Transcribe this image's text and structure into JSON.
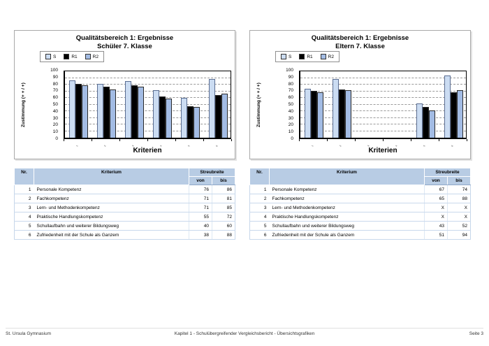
{
  "colors": {
    "s": "#cbdcf2",
    "r1": "#000000",
    "r2": "#a3bce4",
    "table_header": "#b8cce4"
  },
  "chart_data": [
    {
      "type": "bar",
      "title": "Qualitätsbereich 1: Ergebnisse — Schüler 7. Klasse",
      "categories": [
        "1",
        "2",
        "3",
        "4",
        "5",
        "6"
      ],
      "series": [
        {
          "name": "S",
          "values": [
            86,
            81,
            85,
            72,
            60,
            88
          ]
        },
        {
          "name": "R1",
          "values": [
            81,
            77,
            79,
            62,
            47,
            64
          ]
        },
        {
          "name": "R2",
          "values": [
            79,
            73,
            77,
            59,
            46,
            66
          ]
        }
      ],
      "xlabel": "Kriterien",
      "ylabel": "Zustimmung (+ + / +)",
      "ylim": [
        0,
        100
      ],
      "ytick_step": 10,
      "grid": true,
      "legend_position": "top-left"
    },
    {
      "type": "bar",
      "title": "Qualitätsbereich 1: Ergebnisse — Eltern 7. Klasse",
      "categories": [
        "1",
        "2",
        "3",
        "4",
        "5",
        "6"
      ],
      "series": [
        {
          "name": "S",
          "values": [
            74,
            88,
            null,
            null,
            52,
            94
          ]
        },
        {
          "name": "R1",
          "values": [
            71,
            73,
            null,
            null,
            46,
            68
          ]
        },
        {
          "name": "R2",
          "values": [
            68,
            72,
            null,
            null,
            41,
            72
          ]
        }
      ],
      "xlabel": "Kriterien",
      "ylabel": "Zustimmung (+ + / +)",
      "ylim": [
        0,
        100
      ],
      "ytick_step": 10,
      "grid": true,
      "legend_position": "top-left"
    }
  ],
  "panels": [
    {
      "title_line1": "Qualitätsbereich 1: Ergebnisse",
      "title_line2": "Schüler 7. Klasse",
      "legend": [
        "S",
        "R1",
        "R2"
      ],
      "ylabel": "Zustimmung (+ + / +)",
      "xlabel": "Kriterien",
      "table": {
        "headers": {
          "nr": "Nr.",
          "kriterium": "Kriterium",
          "streubreite": "Streubreite",
          "von": "von",
          "bis": "bis"
        },
        "rows": [
          [
            "1",
            "Personale Kompetenz",
            "76",
            "86"
          ],
          [
            "2",
            "Fachkompetenz",
            "71",
            "81"
          ],
          [
            "3",
            "Lern- und Methodenkompetenz",
            "71",
            "85"
          ],
          [
            "4",
            "Praktische Handlungskompetenz",
            "55",
            "72"
          ],
          [
            "5",
            "Schullaufbahn und weiterer Bildungsweg",
            "40",
            "60"
          ],
          [
            "6",
            "Zufriedenheit mit der Schule als Ganzem",
            "38",
            "88"
          ]
        ]
      }
    },
    {
      "title_line1": "Qualitätsbereich 1: Ergebnisse",
      "title_line2": "Eltern 7. Klasse",
      "legend": [
        "S",
        "R1",
        "R2"
      ],
      "ylabel": "Zustimmung (+ + / +)",
      "xlabel": "Kriterien",
      "table": {
        "headers": {
          "nr": "Nr.",
          "kriterium": "Kriterium",
          "streubreite": "Streubreite",
          "von": "von",
          "bis": "bis"
        },
        "rows": [
          [
            "1",
            "Personale Kompetenz",
            "67",
            "74"
          ],
          [
            "2",
            "Fachkompetenz",
            "65",
            "88"
          ],
          [
            "3",
            "Lern- und Methodenkompetenz",
            "X",
            "X"
          ],
          [
            "4",
            "Praktische Handlungskompetenz",
            "X",
            "X"
          ],
          [
            "5",
            "Schullaufbahn und weiterer Bildungsweg",
            "43",
            "52"
          ],
          [
            "6",
            "Zufriedenheit mit der Schule als Ganzem",
            "51",
            "94"
          ]
        ]
      }
    }
  ],
  "footer": {
    "left": "St. Ursula Gymnasium",
    "center": "Kapitel 1 - Schulübergreifender Vergleichsbericht - Übersichtsgrafiken",
    "right": "Seite 3"
  }
}
